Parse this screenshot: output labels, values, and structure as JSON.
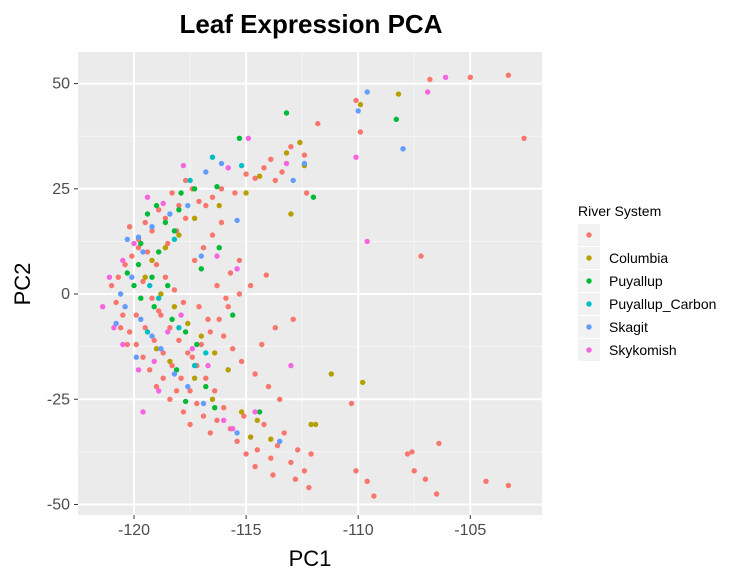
{
  "chart_data": {
    "type": "scatter",
    "title": "Leaf Expression PCA",
    "xlabel": "PC1",
    "ylabel": "PC2",
    "xlim": [
      -122.5,
      -101.8
    ],
    "ylim": [
      -52.5,
      57.5
    ],
    "x_ticks": [
      -120,
      -115,
      -110,
      -105
    ],
    "y_ticks": [
      50,
      25,
      0,
      -25,
      -50
    ],
    "x_tick_labels": [
      "-120",
      "-115",
      "-110",
      "-105"
    ],
    "y_tick_labels": [
      "50",
      "25",
      "0",
      "-25",
      "-50"
    ],
    "grid": true,
    "legend": {
      "title": "River System",
      "placement": "right"
    },
    "series": [
      {
        "name": "",
        "color": "#F8766D",
        "points": [
          [
            -102.6,
            37
          ],
          [
            -103.3,
            52
          ],
          [
            -105.0,
            51.5
          ],
          [
            -106.8,
            51
          ],
          [
            -109.9,
            38.5
          ],
          [
            -110.1,
            46
          ],
          [
            -111.8,
            40.5
          ],
          [
            -112.4,
            33
          ],
          [
            -112.3,
            24
          ],
          [
            -113.0,
            35
          ],
          [
            -113.4,
            29
          ],
          [
            -113.7,
            27
          ],
          [
            -113.9,
            32
          ],
          [
            -114.2,
            30
          ],
          [
            -114.6,
            27.5
          ],
          [
            -115.0,
            28.5
          ],
          [
            -115.5,
            24
          ],
          [
            -116.1,
            25
          ],
          [
            -116.5,
            23
          ],
          [
            -116.8,
            21
          ],
          [
            -117.1,
            22
          ],
          [
            -117.4,
            25
          ],
          [
            -117.7,
            27
          ],
          [
            -118.0,
            21
          ],
          [
            -118.3,
            24
          ],
          [
            -118.6,
            18
          ],
          [
            -118.9,
            20
          ],
          [
            -119.2,
            15
          ],
          [
            -119.5,
            17
          ],
          [
            -119.8,
            11
          ],
          [
            -120.1,
            9
          ],
          [
            -120.4,
            7
          ],
          [
            -120.7,
            4
          ],
          [
            -121.0,
            2
          ],
          [
            -120.8,
            -2
          ],
          [
            -120.5,
            -5
          ],
          [
            -120.2,
            -9
          ],
          [
            -119.9,
            -12
          ],
          [
            -119.6,
            -15
          ],
          [
            -119.3,
            -18
          ],
          [
            -119.0,
            -22
          ],
          [
            -118.7,
            -20
          ],
          [
            -118.4,
            -25
          ],
          [
            -118.1,
            -23
          ],
          [
            -117.8,
            -28
          ],
          [
            -117.5,
            -31
          ],
          [
            -117.2,
            -26
          ],
          [
            -116.9,
            -29
          ],
          [
            -116.6,
            -33
          ],
          [
            -116.3,
            -30
          ],
          [
            -116.0,
            -27
          ],
          [
            -115.7,
            -32
          ],
          [
            -115.4,
            -35
          ],
          [
            -115.1,
            -29
          ],
          [
            -114.8,
            -34
          ],
          [
            -114.5,
            -37
          ],
          [
            -114.2,
            -31
          ],
          [
            -113.9,
            -39
          ],
          [
            -113.6,
            -36
          ],
          [
            -113.3,
            -33
          ],
          [
            -113.0,
            -40
          ],
          [
            -112.7,
            -37
          ],
          [
            -112.4,
            -42
          ],
          [
            -112.1,
            -38
          ],
          [
            -110.3,
            -26
          ],
          [
            -110.1,
            -42
          ],
          [
            -109.6,
            -44.5
          ],
          [
            -109.3,
            -48
          ],
          [
            -107.8,
            -38
          ],
          [
            -107.6,
            -37.5
          ],
          [
            -107.5,
            -42
          ],
          [
            -107.0,
            -44
          ],
          [
            -106.5,
            -47.5
          ],
          [
            -106.4,
            -35.5
          ],
          [
            -104.3,
            -44.5
          ],
          [
            -103.3,
            -45.5
          ],
          [
            -107.2,
            9
          ],
          [
            -114.1,
            4.5
          ],
          [
            -114.8,
            2
          ],
          [
            -115.3,
            0
          ],
          [
            -115.8,
            -3
          ],
          [
            -116.2,
            -6
          ],
          [
            -116.6,
            -9
          ],
          [
            -117.0,
            -12
          ],
          [
            -117.4,
            -15
          ],
          [
            -117.8,
            -2
          ],
          [
            -118.2,
            1
          ],
          [
            -118.6,
            4
          ],
          [
            -119.0,
            7
          ],
          [
            -119.4,
            10
          ],
          [
            -119.8,
            13
          ],
          [
            -120.2,
            16
          ],
          [
            -118.8,
            -5
          ],
          [
            -118.4,
            -8
          ],
          [
            -118.0,
            -11
          ],
          [
            -117.6,
            -14
          ],
          [
            -117.2,
            -17
          ],
          [
            -116.8,
            -20
          ],
          [
            -116.4,
            -23
          ],
          [
            -116.0,
            -10
          ],
          [
            -115.6,
            -13
          ],
          [
            -115.2,
            -16
          ],
          [
            -114.6,
            -19
          ],
          [
            -114.0,
            -22
          ],
          [
            -113.5,
            -25
          ],
          [
            -119.6,
            3
          ],
          [
            -119.2,
            -1
          ],
          [
            -118.9,
            -4
          ],
          [
            -118.5,
            12
          ],
          [
            -118.1,
            15
          ],
          [
            -117.7,
            18
          ],
          [
            -117.3,
            8
          ],
          [
            -116.9,
            11
          ],
          [
            -116.5,
            14
          ],
          [
            -116.1,
            17
          ],
          [
            -115.7,
            5
          ],
          [
            -115.3,
            8
          ],
          [
            -120.6,
            -8
          ],
          [
            -120.3,
            -12
          ],
          [
            -119.9,
            -5
          ],
          [
            -119.5,
            -8
          ],
          [
            -119.1,
            -11
          ],
          [
            -118.7,
            -14
          ],
          [
            -118.3,
            -17
          ],
          [
            -117.9,
            -20
          ],
          [
            -117.5,
            -23
          ],
          [
            -117.1,
            -3
          ],
          [
            -116.7,
            -6
          ],
          [
            -116.3,
            2
          ],
          [
            -115.9,
            -1
          ],
          [
            -112.9,
            -6
          ],
          [
            -113.7,
            -8
          ],
          [
            -114.3,
            -12
          ],
          [
            -115.0,
            -38
          ],
          [
            -114.6,
            -41
          ],
          [
            -113.8,
            -43
          ],
          [
            -112.8,
            -44
          ],
          [
            -112.2,
            -46
          ]
        ]
      },
      {
        "name": "Columbia",
        "color": "#B79F00",
        "points": [
          [
            -108.2,
            47.5
          ],
          [
            -109.9,
            45
          ],
          [
            -112.6,
            36
          ],
          [
            -113.2,
            33.5
          ],
          [
            -112.4,
            30.5
          ],
          [
            -113.0,
            19
          ],
          [
            -114.4,
            28
          ],
          [
            -115.0,
            24
          ],
          [
            -116.2,
            21
          ],
          [
            -117.3,
            18
          ],
          [
            -118.0,
            14
          ],
          [
            -118.6,
            11
          ],
          [
            -119.2,
            8
          ],
          [
            -119.5,
            4
          ],
          [
            -118.8,
            0
          ],
          [
            -118.2,
            -3
          ],
          [
            -117.6,
            -7
          ],
          [
            -117.0,
            -10
          ],
          [
            -116.4,
            -14
          ],
          [
            -115.8,
            -18
          ],
          [
            -111.2,
            -19
          ],
          [
            -109.8,
            -21
          ],
          [
            -112.1,
            -31
          ],
          [
            -111.9,
            -31
          ],
          [
            -114.8,
            -34
          ],
          [
            -113.9,
            -34.5
          ],
          [
            -116.5,
            -25
          ],
          [
            -117.3,
            -20
          ],
          [
            -115.2,
            -28
          ],
          [
            -114.5,
            -30
          ],
          [
            -118.4,
            -16
          ],
          [
            -119.0,
            -13
          ]
        ]
      },
      {
        "name": "Puyallup",
        "color": "#00BA38",
        "points": [
          [
            -108.3,
            41.5
          ],
          [
            -113.2,
            43
          ],
          [
            -115.3,
            37
          ],
          [
            -116.3,
            25.5
          ],
          [
            -117.3,
            25
          ],
          [
            -117.9,
            24
          ],
          [
            -119.0,
            21
          ],
          [
            -119.4,
            19
          ],
          [
            -118.6,
            17
          ],
          [
            -118.2,
            15
          ],
          [
            -119.7,
            12
          ],
          [
            -118.9,
            10
          ],
          [
            -119.8,
            7
          ],
          [
            -119.2,
            4
          ],
          [
            -118.5,
            2
          ],
          [
            -119.7,
            -1
          ],
          [
            -119.1,
            -3
          ],
          [
            -118.3,
            -6
          ],
          [
            -117.7,
            -9
          ],
          [
            -117.2,
            -12
          ],
          [
            -118.1,
            -18
          ],
          [
            -117.7,
            -25.5
          ],
          [
            -116.8,
            -22
          ],
          [
            -116.4,
            -27
          ],
          [
            -114.4,
            -28
          ],
          [
            -112.0,
            23
          ],
          [
            -116.2,
            11
          ],
          [
            -117.0,
            6
          ],
          [
            -115.6,
            -5
          ],
          [
            -120.0,
            2
          ],
          [
            -120.3,
            5
          ],
          [
            -118.0,
            20
          ]
        ]
      },
      {
        "name": "Puyallup_Carbon",
        "color": "#00BFC4",
        "points": [
          [
            -116.5,
            32.5
          ],
          [
            -115.2,
            30.5
          ],
          [
            -117.5,
            27
          ],
          [
            -118.2,
            13
          ],
          [
            -119.3,
            2
          ],
          [
            -118.9,
            -1
          ],
          [
            -119.4,
            -9
          ],
          [
            -118.0,
            -8
          ],
          [
            -117.3,
            -17
          ],
          [
            -116.8,
            -14
          ]
        ]
      },
      {
        "name": "Skagit",
        "color": "#619CFF",
        "points": [
          [
            -109.6,
            48
          ],
          [
            -108.0,
            34.5
          ],
          [
            -110.0,
            43.5
          ],
          [
            -112.4,
            31
          ],
          [
            -112.9,
            27
          ],
          [
            -116.1,
            31
          ],
          [
            -116.8,
            29
          ],
          [
            -117.6,
            21
          ],
          [
            -118.4,
            19
          ],
          [
            -119.2,
            16
          ],
          [
            -119.8,
            13.5
          ],
          [
            -120.3,
            13
          ],
          [
            -119.6,
            10
          ],
          [
            -120.1,
            4
          ],
          [
            -120.6,
            0
          ],
          [
            -120.4,
            -3
          ],
          [
            -119.7,
            -6
          ],
          [
            -119.2,
            -10
          ],
          [
            -118.8,
            -13
          ],
          [
            -118.2,
            -19
          ],
          [
            -117.6,
            -22
          ],
          [
            -116.9,
            -26
          ],
          [
            -115.4,
            -33
          ],
          [
            -113.5,
            -35
          ],
          [
            -120.8,
            -7
          ],
          [
            -119.9,
            -15
          ],
          [
            -115.4,
            17.5
          ],
          [
            -117.0,
            9
          ]
        ]
      },
      {
        "name": "Skykomish",
        "color": "#F564E3",
        "points": [
          [
            -106.1,
            51.5
          ],
          [
            -106.9,
            48
          ],
          [
            -110.1,
            32.5
          ],
          [
            -109.6,
            12.5
          ],
          [
            -113.2,
            31
          ],
          [
            -114.9,
            37
          ],
          [
            -115.8,
            30
          ],
          [
            -117.8,
            30.5
          ],
          [
            -118.7,
            21.5
          ],
          [
            -119.4,
            23
          ],
          [
            -120.0,
            12
          ],
          [
            -120.5,
            8
          ],
          [
            -121.1,
            4
          ],
          [
            -121.4,
            -3
          ],
          [
            -120.9,
            -8
          ],
          [
            -120.5,
            -12
          ],
          [
            -119.8,
            -18
          ],
          [
            -119.1,
            -16
          ],
          [
            -118.5,
            -9
          ],
          [
            -117.9,
            -5
          ],
          [
            -117.4,
            -13
          ],
          [
            -116.7,
            -17
          ],
          [
            -116.3,
            9
          ],
          [
            -115.4,
            6
          ],
          [
            -114.6,
            -28
          ],
          [
            -115.6,
            -32
          ],
          [
            -113.0,
            -17
          ],
          [
            -116.0,
            -30
          ],
          [
            -119.6,
            -28
          ],
          [
            -118.9,
            -23
          ]
        ]
      }
    ]
  }
}
